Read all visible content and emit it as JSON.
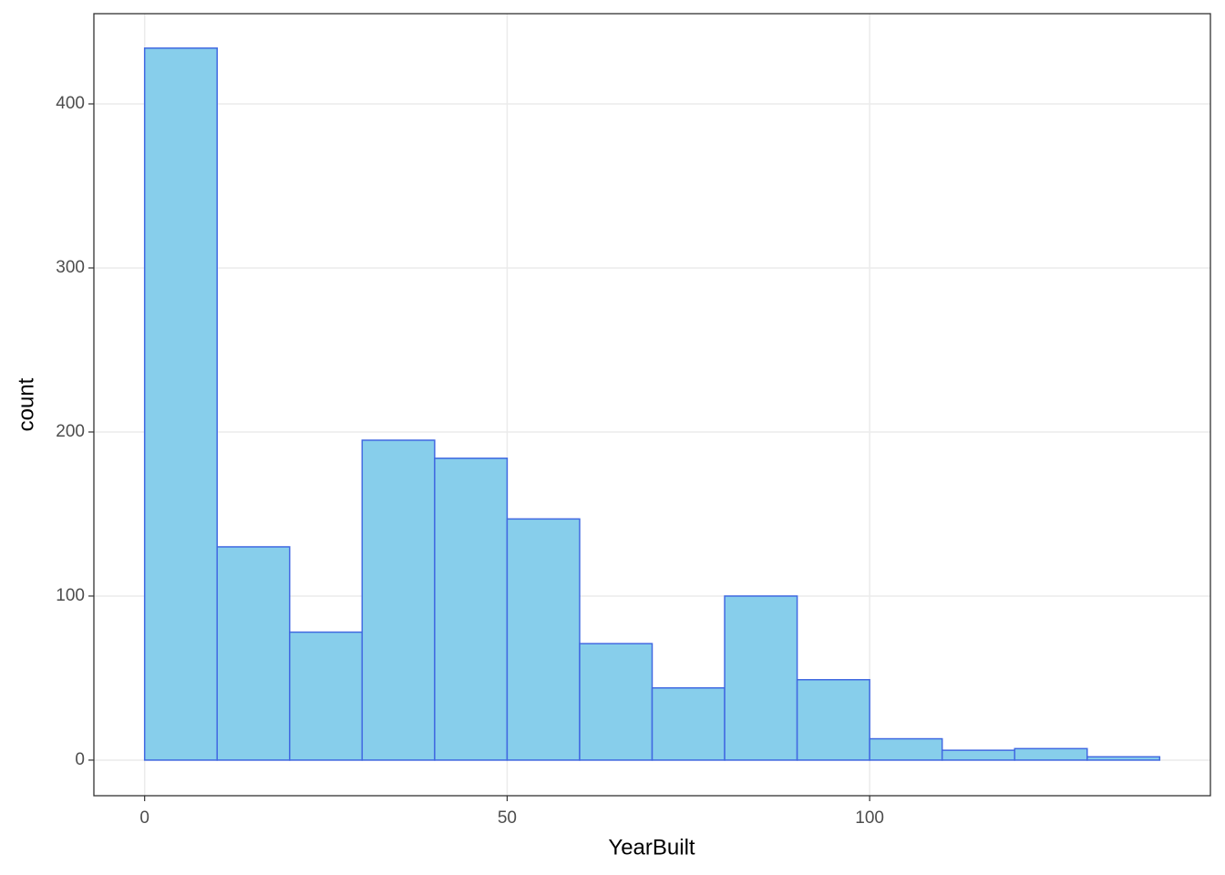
{
  "chart_data": {
    "type": "histogram",
    "x_label": "YearBuilt",
    "y_label": "count",
    "bins": [
      0,
      10,
      20,
      30,
      40,
      50,
      60,
      70,
      80,
      90,
      100,
      110,
      120,
      130,
      140
    ],
    "values": [
      434,
      130,
      78,
      195,
      184,
      147,
      71,
      44,
      100,
      49,
      13,
      6,
      7,
      2
    ],
    "color": "#87ceeb",
    "edge_color": "#4169e1",
    "xlim": [
      -7,
      147
    ],
    "ylim": [
      -21.7,
      455
    ],
    "xticks": [
      0,
      50,
      100
    ],
    "yticks": [
      0,
      100,
      200,
      300,
      400
    ],
    "grid": true
  }
}
